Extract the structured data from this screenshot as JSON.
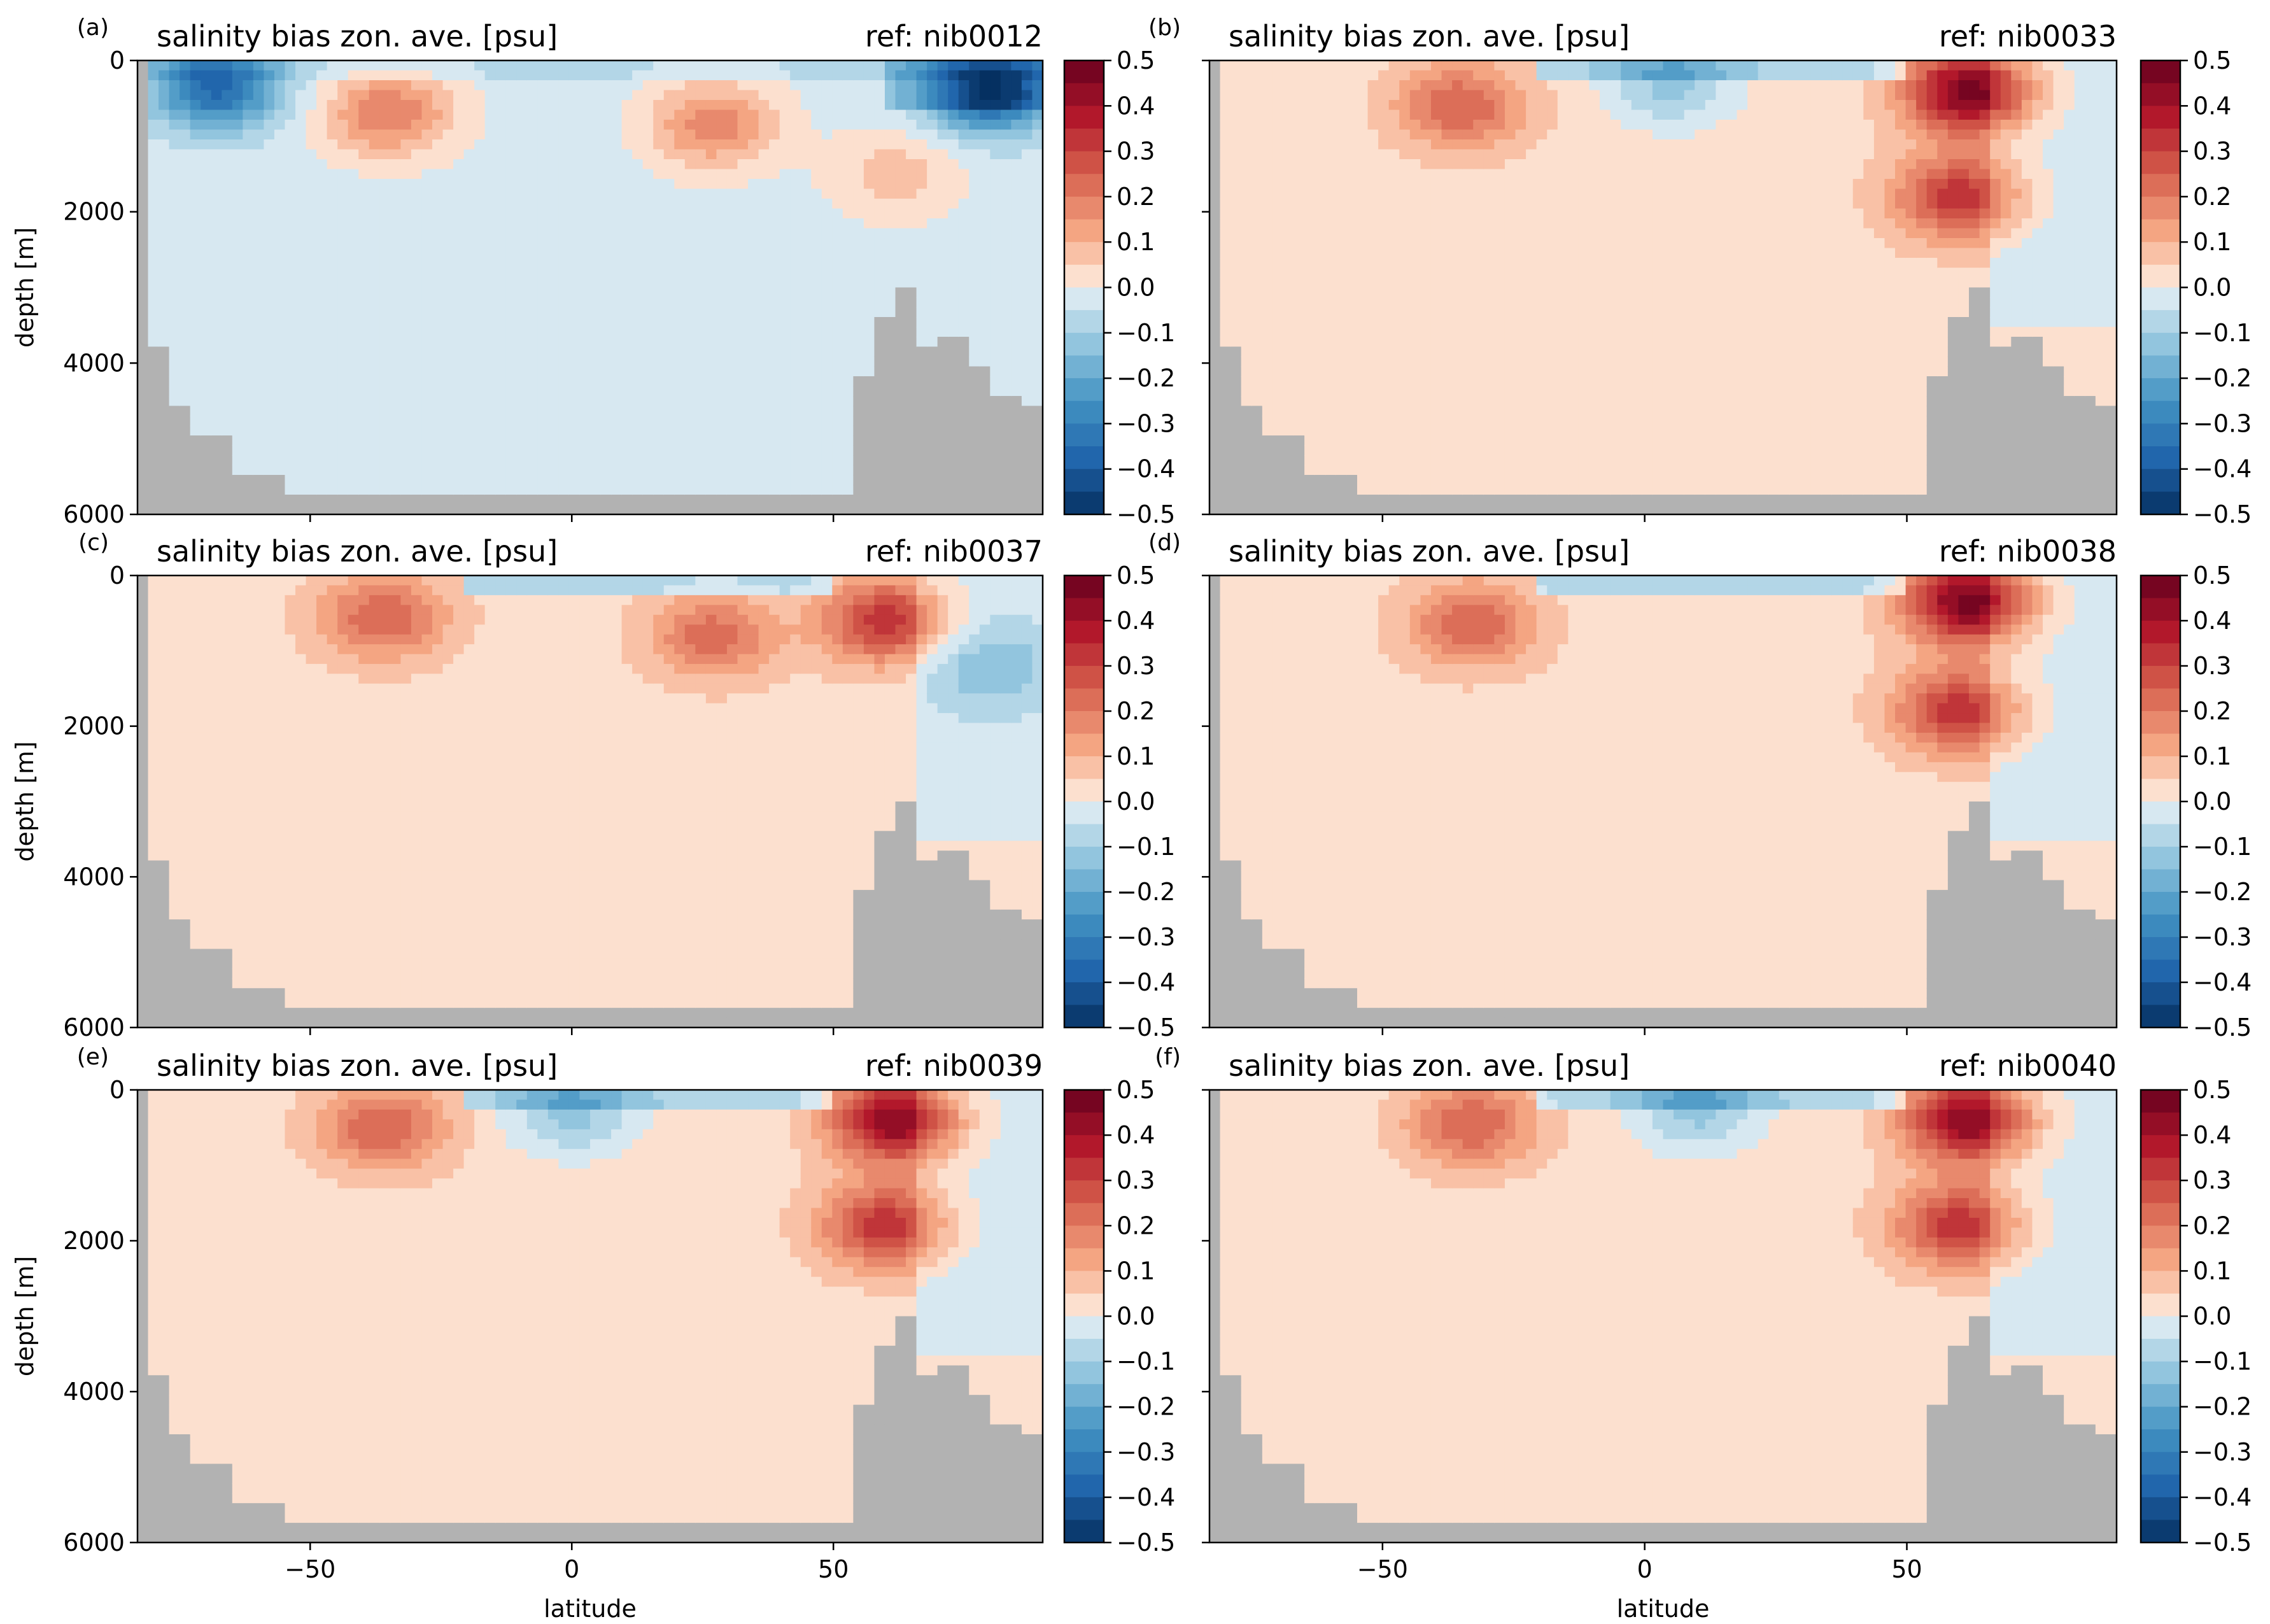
{
  "figure": {
    "title_left": "salinity bias zon. ave. [psu]",
    "xlabel": "latitude",
    "ylabel": "depth [m]",
    "y_ticks": [
      0,
      2000,
      4000,
      6000
    ],
    "x_ticks": [
      -50,
      0,
      50
    ],
    "colorbar_ticks": [
      "0.5",
      "0.4",
      "0.3",
      "0.2",
      "0.1",
      "0.0",
      "−0.1",
      "−0.2",
      "−0.3",
      "−0.4",
      "−0.5"
    ],
    "colors": {
      "land": "#b2b2b2",
      "positive": "#b2182b",
      "negative": "#2166ac"
    }
  },
  "chart_data": [
    {
      "type": "heatmap",
      "panel": "(a)",
      "title": "salinity bias zon. ave. [psu]",
      "ref": "ref: nib0012",
      "xlim": [
        -83,
        90
      ],
      "ylim": [
        6000,
        0
      ],
      "clim": [
        -0.5,
        0.5
      ],
      "ylabel": "depth [m]",
      "xlabel": "",
      "features": [
        {
          "x": -68,
          "d": 350,
          "v": -0.35
        },
        {
          "x": -35,
          "d": 700,
          "v": 0.22
        },
        {
          "x": 27,
          "d": 850,
          "v": 0.2
        },
        {
          "x": 80,
          "d": 400,
          "v": -0.4
        },
        {
          "x": 62,
          "d": 1500,
          "v": 0.1
        }
      ]
    },
    {
      "type": "heatmap",
      "panel": "(b)",
      "title": "salinity bias zon. ave. [psu]",
      "ref": "ref: nib0033",
      "xlim": [
        -83,
        90
      ],
      "ylim": [
        6000,
        0
      ],
      "clim": [
        -0.5,
        0.5
      ],
      "ylabel": "",
      "xlabel": "",
      "features": [
        {
          "x": -35,
          "d": 600,
          "v": 0.22
        },
        {
          "x": 62,
          "d": 400,
          "v": 0.45
        },
        {
          "x": 60,
          "d": 1800,
          "v": 0.3
        },
        {
          "x": 5,
          "d": 300,
          "v": -0.15
        }
      ]
    },
    {
      "type": "heatmap",
      "panel": "(c)",
      "title": "salinity bias zon. ave. [psu]",
      "ref": "ref: nib0037",
      "xlim": [
        -83,
        90
      ],
      "ylim": [
        6000,
        0
      ],
      "clim": [
        -0.5,
        0.5
      ],
      "ylabel": "depth [m]",
      "xlabel": "",
      "features": [
        {
          "x": -36,
          "d": 550,
          "v": 0.22
        },
        {
          "x": 27,
          "d": 800,
          "v": 0.2
        },
        {
          "x": 60,
          "d": 600,
          "v": 0.3
        },
        {
          "x": 80,
          "d": 1200,
          "v": -0.12
        }
      ]
    },
    {
      "type": "heatmap",
      "panel": "(d)",
      "title": "salinity bias zon. ave. [psu]",
      "ref": "ref: nib0038",
      "xlim": [
        -83,
        90
      ],
      "ylim": [
        6000,
        0
      ],
      "clim": [
        -0.5,
        0.5
      ],
      "ylabel": "",
      "xlabel": "",
      "features": [
        {
          "x": -33,
          "d": 650,
          "v": 0.22
        },
        {
          "x": 62,
          "d": 350,
          "v": 0.45
        },
        {
          "x": 60,
          "d": 1800,
          "v": 0.3
        }
      ]
    },
    {
      "type": "heatmap",
      "panel": "(e)",
      "title": "salinity bias zon. ave. [psu]",
      "ref": "ref: nib0039",
      "xlim": [
        -83,
        90
      ],
      "ylim": [
        6000,
        0
      ],
      "clim": [
        -0.5,
        0.5
      ],
      "ylabel": "depth [m]",
      "xlabel": "latitude",
      "features": [
        {
          "x": -36,
          "d": 500,
          "v": 0.22
        },
        {
          "x": 62,
          "d": 400,
          "v": 0.42
        },
        {
          "x": 60,
          "d": 1800,
          "v": 0.3
        },
        {
          "x": 0,
          "d": 300,
          "v": -0.15
        }
      ]
    },
    {
      "type": "heatmap",
      "panel": "(f)",
      "title": "salinity bias zon. ave. [psu]",
      "ref": "ref: nib0040",
      "xlim": [
        -83,
        90
      ],
      "ylim": [
        6000,
        0
      ],
      "clim": [
        -0.5,
        0.5
      ],
      "ylabel": "",
      "xlabel": "latitude",
      "features": [
        {
          "x": -33,
          "d": 450,
          "v": 0.22
        },
        {
          "x": 62,
          "d": 400,
          "v": 0.42
        },
        {
          "x": 60,
          "d": 1800,
          "v": 0.3
        },
        {
          "x": 10,
          "d": 250,
          "v": -0.15
        }
      ]
    }
  ]
}
